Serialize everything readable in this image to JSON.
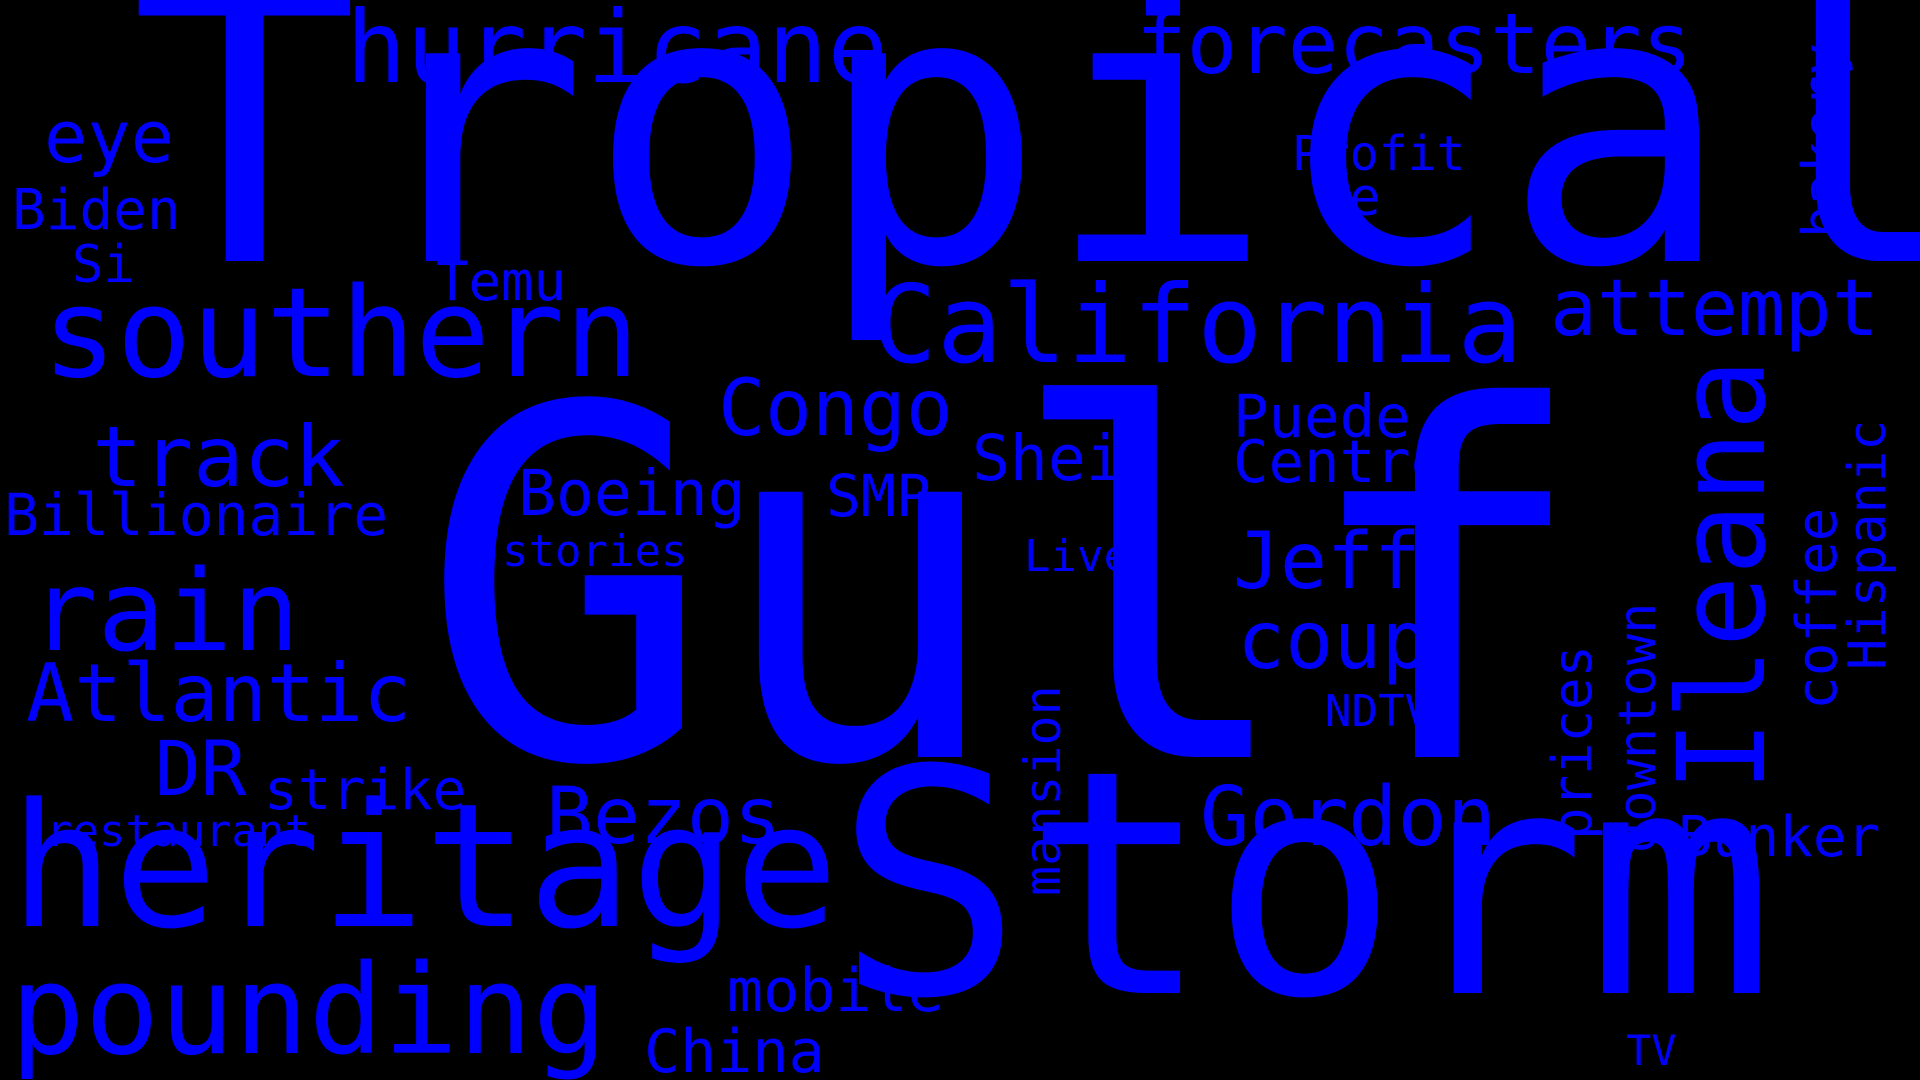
{
  "background_color": "#000000",
  "word_color": "#0000ff",
  "words": [
    "Gulf",
    "Tropical",
    "Storm",
    "heritage",
    "southern",
    "pounding",
    "California",
    "Ileana",
    "hurricane",
    "forecasters",
    "rain",
    "attempt",
    "Atlantic",
    "Congo",
    "Gordon",
    "Jeff",
    "coup",
    "track",
    "Bezos",
    "eye",
    "DR",
    "Billionaire",
    "Boeing",
    "Shein",
    "Centre",
    "Puede",
    "strike",
    "China",
    "mobile",
    "Biden",
    "Temu",
    "SMP",
    "restaurant",
    "Bunker",
    "coffee",
    "Hispanic",
    "bakery",
    "downtown",
    "prices",
    "mansion",
    "Profit",
    "Se",
    "Si",
    "stories",
    "Live",
    "NDTV",
    "TV"
  ]
}
